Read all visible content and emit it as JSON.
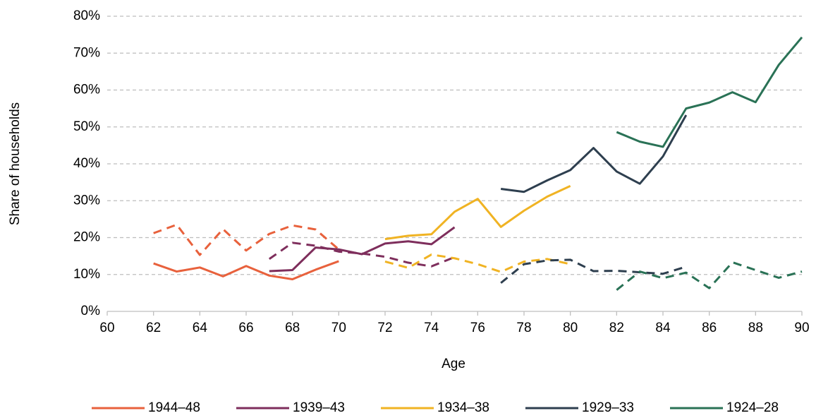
{
  "chart_data": {
    "type": "line",
    "x_label": "Age",
    "y_label": "Share of households",
    "xlim": [
      60,
      90
    ],
    "xticks": [
      60,
      62,
      64,
      66,
      68,
      70,
      72,
      74,
      76,
      78,
      80,
      82,
      84,
      86,
      88,
      90
    ],
    "ylim": [
      0,
      80
    ],
    "yticks": [
      {
        "value": 0,
        "label": "0%"
      },
      {
        "value": 10,
        "label": "10%"
      },
      {
        "value": 20,
        "label": "20%"
      },
      {
        "value": 30,
        "label": "30%"
      },
      {
        "value": 40,
        "label": "40%"
      },
      {
        "value": 50,
        "label": "50%"
      },
      {
        "value": 60,
        "label": "60%"
      },
      {
        "value": 70,
        "label": "70%"
      },
      {
        "value": 80,
        "label": "80%"
      }
    ],
    "grid": true,
    "legend": "bottom",
    "series": [
      {
        "name": "1944–48",
        "color": "#e8613c",
        "dashed": false,
        "x": [
          62,
          63,
          64,
          65,
          66,
          67,
          68,
          69,
          70
        ],
        "values": [
          13,
          10.8,
          11.9,
          9.5,
          12.3,
          9.7,
          8.7,
          11.3,
          13.6
        ]
      },
      {
        "color": "#e8613c",
        "dashed": true,
        "x": [
          62,
          63,
          64,
          65,
          66,
          67,
          68,
          69,
          70
        ],
        "values": [
          21.2,
          23.5,
          15.3,
          22.3,
          16.5,
          21,
          23.3,
          22.2,
          16.8
        ]
      },
      {
        "name": "1939–43",
        "color": "#7e2e5c",
        "dashed": false,
        "x": [
          67,
          68,
          69,
          70,
          71,
          72,
          73,
          74,
          75
        ],
        "values": [
          10.9,
          11.2,
          17.3,
          16.8,
          15.5,
          18.4,
          19,
          18.2,
          22.8
        ]
      },
      {
        "color": "#7e2e5c",
        "dashed": true,
        "x": [
          67,
          68,
          69,
          70,
          71,
          72,
          73,
          74,
          75
        ],
        "values": [
          14.2,
          18.6,
          17.8,
          16.2,
          15.7,
          14.8,
          13.2,
          12.2,
          14.7
        ]
      },
      {
        "name": "1934–38",
        "color": "#f0b323",
        "dashed": false,
        "x": [
          72,
          73,
          74,
          75,
          76,
          77,
          78,
          79,
          80
        ],
        "values": [
          19.6,
          20.5,
          20.9,
          27,
          30.5,
          22.9,
          27.3,
          31.1,
          34
        ]
      },
      {
        "color": "#f0b323",
        "dashed": true,
        "x": [
          72,
          73,
          74,
          75,
          76,
          77,
          78,
          79,
          80
        ],
        "values": [
          13.5,
          11.8,
          15.4,
          14.4,
          12.8,
          10.7,
          13.5,
          14.2,
          12.8
        ]
      },
      {
        "name": "1929–33",
        "color": "#2e3f4f",
        "dashed": false,
        "x": [
          77,
          78,
          79,
          80,
          81,
          82,
          83,
          84,
          85
        ],
        "values": [
          33.2,
          32.4,
          35.5,
          38.3,
          44.3,
          37.9,
          34.6,
          42,
          53.2
        ]
      },
      {
        "color": "#2e3f4f",
        "dashed": true,
        "x": [
          77,
          78,
          79,
          80,
          81,
          82,
          83,
          84,
          85
        ],
        "values": [
          7.7,
          12.8,
          13.8,
          14,
          10.9,
          11,
          10.6,
          10.2,
          12.1
        ]
      },
      {
        "name": "1924–28",
        "color": "#2a7256",
        "dashed": false,
        "x": [
          82,
          83,
          84,
          85,
          86,
          87,
          88,
          89,
          90
        ],
        "values": [
          48.6,
          46,
          44.6,
          55,
          56.6,
          59.4,
          56.7,
          66.8,
          74.3
        ]
      },
      {
        "color": "#2a7256",
        "dashed": true,
        "x": [
          82,
          83,
          84,
          85,
          86,
          87,
          88,
          89,
          90
        ],
        "values": [
          5.8,
          10.8,
          9,
          10.5,
          6.3,
          13.3,
          11.2,
          9.1,
          10.8
        ]
      }
    ]
  }
}
